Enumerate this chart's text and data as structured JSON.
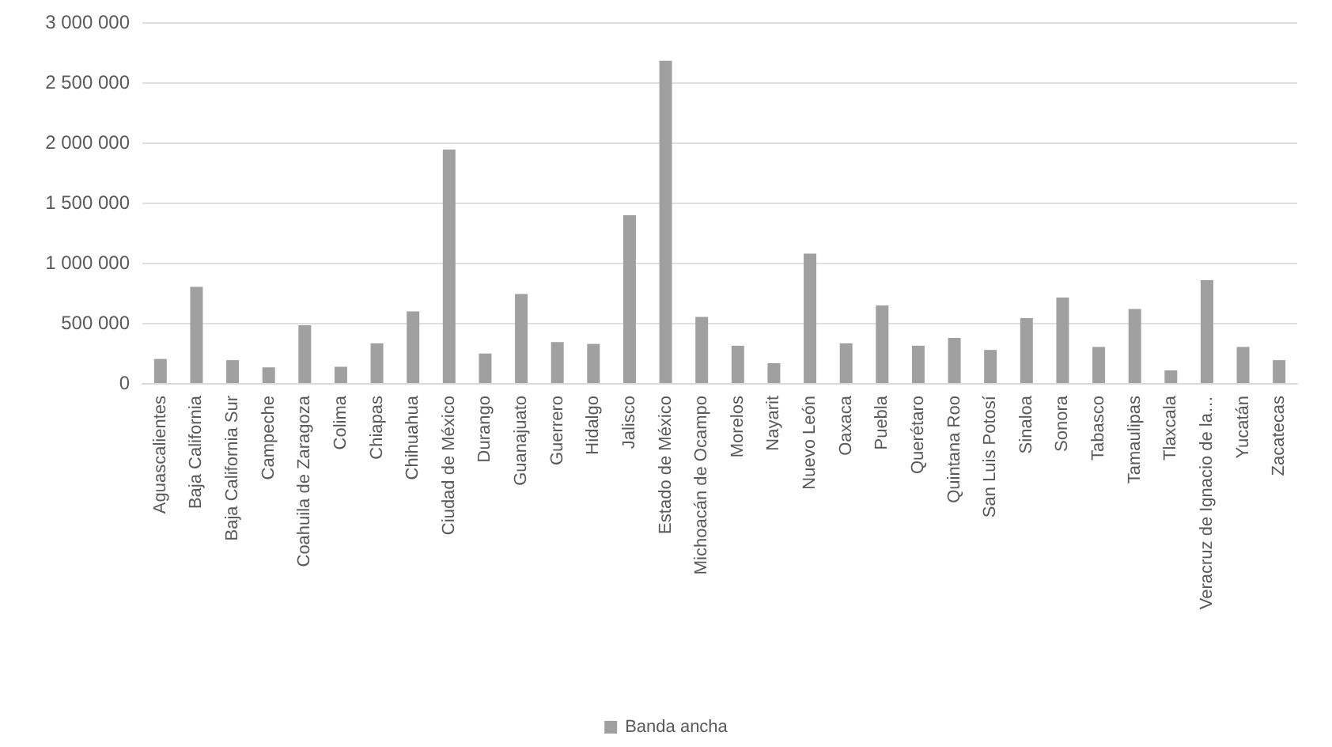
{
  "chart_data": {
    "type": "bar",
    "categories": [
      "Aguascalientes",
      "Baja California",
      "Baja California Sur",
      "Campeche",
      "Coahuila de Zaragoza",
      "Colima",
      "Chiapas",
      "Chihuahua",
      "Ciudad de México",
      "Durango",
      "Guanajuato",
      "Guerrero",
      "Hidalgo",
      "Jalisco",
      "Estado de México",
      "Michoacán de Ocampo",
      "Morelos",
      "Nayarit",
      "Nuevo León",
      "Oaxaca",
      "Puebla",
      "Querétaro",
      "Quintana Roo",
      "San Luis Potosí",
      "Sinaloa",
      "Sonora",
      "Tabasco",
      "Tamaulipas",
      "Tlaxcala",
      "Veracruz de Ignacio de la…",
      "Yucatán",
      "Zacatecas"
    ],
    "series": [
      {
        "name": "Banda ancha",
        "color": "#a0a0a0",
        "values": [
          200000,
          800000,
          190000,
          130000,
          480000,
          135000,
          330000,
          595000,
          1940000,
          245000,
          740000,
          340000,
          325000,
          1395000,
          2680000,
          550000,
          310000,
          165000,
          1075000,
          330000,
          645000,
          310000,
          375000,
          275000,
          540000,
          710000,
          300000,
          615000,
          105000,
          855000,
          300000,
          190000
        ]
      }
    ],
    "ylim": [
      0,
      3000000
    ],
    "yticks": [
      0,
      {
        "value": 500000,
        "label": "500 000"
      },
      {
        "value": 1000000,
        "label": "1 000 000"
      },
      {
        "value": 1500000,
        "label": "1 500 000"
      },
      {
        "value": 2000000,
        "label": "2 000 000"
      },
      {
        "value": 2500000,
        "label": "2 500 000"
      },
      {
        "value": 3000000,
        "label": "3 000 000"
      }
    ],
    "grid": "y",
    "legend": "bottom"
  }
}
